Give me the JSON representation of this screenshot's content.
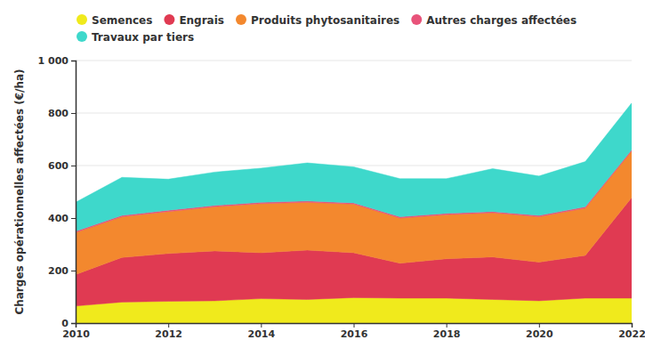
{
  "chart_data": {
    "type": "area",
    "stacked": true,
    "grid": true,
    "legend": "top",
    "y_label": "Charges opérationnelles affectées (€/ha)",
    "x": [
      2010,
      2011,
      2012,
      2013,
      2014,
      2015,
      2016,
      2017,
      2018,
      2019,
      2020,
      2021,
      2022
    ],
    "xlim": [
      2010,
      2022
    ],
    "xticks": [
      2010,
      2012,
      2014,
      2016,
      2018,
      2020,
      2022
    ],
    "ylim": [
      0,
      1000
    ],
    "yticks": [
      0,
      200,
      400,
      600,
      800,
      {
        "value": 1000,
        "label": "1 000"
      }
    ],
    "series": [
      {
        "name": "Semences",
        "color": "#f0ea1c",
        "values": [
          65,
          80,
          83,
          85,
          93,
          90,
          97,
          95,
          95,
          90,
          85,
          95,
          95
        ]
      },
      {
        "name": "Engrais",
        "color": "#e03a52",
        "values": [
          120,
          170,
          182,
          190,
          175,
          188,
          171,
          133,
          150,
          162,
          147,
          163,
          383
        ]
      },
      {
        "name": "Produits phytosanitaires",
        "color": "#f3882e",
        "values": [
          160,
          155,
          160,
          168,
          187,
          182,
          185,
          172,
          168,
          168,
          173,
          180,
          177
        ]
      },
      {
        "name": "Autres charges affectées",
        "color": "#e8537a",
        "values": [
          5,
          5,
          5,
          5,
          5,
          5,
          5,
          5,
          5,
          5,
          5,
          5,
          5
        ]
      },
      {
        "name": "Travaux par tiers",
        "color": "#3ed8cb",
        "values": [
          110,
          145,
          118,
          127,
          130,
          145,
          137,
          145,
          132,
          163,
          150,
          172,
          178
        ]
      }
    ]
  }
}
